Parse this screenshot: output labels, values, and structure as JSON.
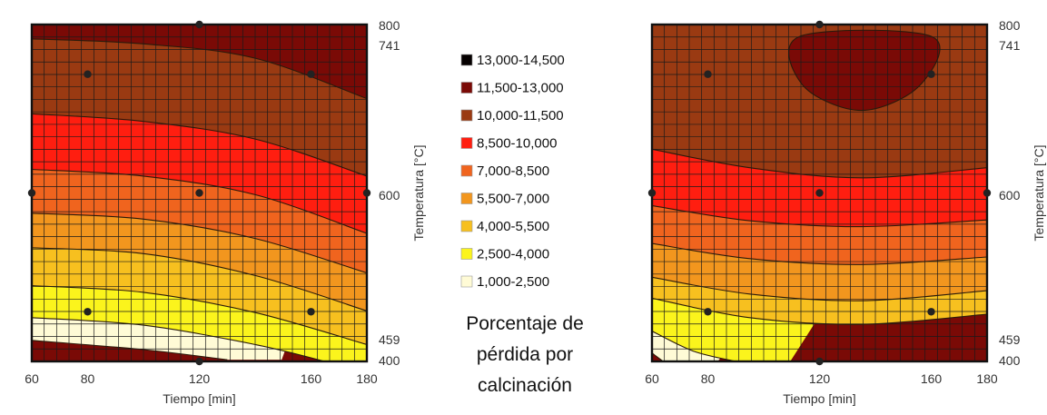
{
  "chart_data": [
    {
      "type": "contour",
      "panel": "left",
      "xlabel": "Tiempo [min]",
      "ylabel": "Temperatura [°C]",
      "xlim": [
        60,
        180
      ],
      "ylim": [
        400,
        800
      ],
      "x_ticks": [
        60,
        80,
        120,
        160,
        180
      ],
      "y_ticks": [
        400,
        459,
        600,
        741,
        800
      ],
      "design_points": [
        {
          "x": 60,
          "y": 600
        },
        {
          "x": 80,
          "y": 459
        },
        {
          "x": 80,
          "y": 741
        },
        {
          "x": 120,
          "y": 400
        },
        {
          "x": 120,
          "y": 600
        },
        {
          "x": 120,
          "y": 800
        },
        {
          "x": 160,
          "y": 459
        },
        {
          "x": 160,
          "y": 741
        },
        {
          "x": 180,
          "y": 600
        }
      ],
      "contour_levels": [
        2500,
        4000,
        5500,
        7000,
        8500,
        10000,
        11500,
        13000
      ],
      "approx_level_curves": [
        {
          "level": 13000,
          "points": [
            [
              60,
              425
            ],
            [
              100,
              414
            ],
            [
              130,
              402
            ]
          ]
        },
        {
          "level": 11500,
          "points": [
            [
              60,
              452
            ],
            [
              100,
              443
            ],
            [
              140,
              420
            ],
            [
              165,
              400
            ]
          ]
        },
        {
          "level": 10000,
          "points": [
            [
              60,
              490
            ],
            [
              100,
              482
            ],
            [
              140,
              458
            ],
            [
              180,
              420
            ]
          ]
        },
        {
          "level": 8500,
          "points": [
            [
              60,
              535
            ],
            [
              100,
              528
            ],
            [
              140,
              502
            ],
            [
              180,
              460
            ]
          ]
        },
        {
          "level": 7000,
          "points": [
            [
              60,
              576
            ],
            [
              100,
              569
            ],
            [
              140,
              546
            ],
            [
              180,
              505
            ]
          ]
        },
        {
          "level": 5500,
          "points": [
            [
              60,
              628
            ],
            [
              100,
              620
            ],
            [
              140,
              598
            ],
            [
              180,
              552
            ]
          ]
        },
        {
          "level": 4000,
          "points": [
            [
              60,
              694
            ],
            [
              100,
              685
            ],
            [
              140,
              664
            ],
            [
              180,
              620
            ]
          ]
        },
        {
          "level": 2500,
          "points": [
            [
              60,
              783
            ],
            [
              100,
              777
            ],
            [
              140,
              760
            ],
            [
              180,
              712
            ]
          ]
        }
      ]
    },
    {
      "type": "contour",
      "panel": "right",
      "xlabel": "Tiempo [min]",
      "ylabel": "Temperatura [°C]",
      "xlim": [
        60,
        180
      ],
      "ylim": [
        400,
        800
      ],
      "x_ticks": [
        60,
        80,
        120,
        160,
        180
      ],
      "y_ticks": [
        400,
        459,
        600,
        741,
        800
      ],
      "design_points": [
        {
          "x": 60,
          "y": 600
        },
        {
          "x": 80,
          "y": 459
        },
        {
          "x": 80,
          "y": 741
        },
        {
          "x": 120,
          "y": 400
        },
        {
          "x": 120,
          "y": 600
        },
        {
          "x": 120,
          "y": 800
        },
        {
          "x": 160,
          "y": 459
        },
        {
          "x": 160,
          "y": 741
        },
        {
          "x": 180,
          "y": 600
        }
      ],
      "contour_levels": [
        2500,
        4000,
        5500,
        7000,
        8500,
        10000,
        11500,
        13000
      ],
      "approx_level_curves": [
        {
          "level": 13000,
          "points": [
            [
              60,
              410
            ],
            [
              64,
              400
            ]
          ]
        },
        {
          "level": 11500,
          "points": [
            [
              60,
              436
            ],
            [
              75,
              412
            ],
            [
              90,
              400
            ]
          ]
        },
        {
          "level": 10000,
          "points": [
            [
              60,
              475
            ],
            [
              95,
              452
            ],
            [
              135,
              444
            ],
            [
              180,
              456
            ]
          ]
        },
        {
          "level": 8500,
          "points": [
            [
              60,
              500
            ],
            [
              95,
              480
            ],
            [
              135,
              472
            ],
            [
              180,
              484
            ]
          ]
        },
        {
          "level": 7000,
          "points": [
            [
              60,
              540
            ],
            [
              95,
              522
            ],
            [
              135,
              515
            ],
            [
              180,
              524
            ]
          ]
        },
        {
          "level": 5500,
          "points": [
            [
              60,
              585
            ],
            [
              95,
              567
            ],
            [
              135,
              560
            ],
            [
              180,
              568
            ]
          ]
        },
        {
          "level": 4000,
          "points": [
            [
              60,
              652
            ],
            [
              95,
              630
            ],
            [
              135,
              618
            ],
            [
              180,
              630
            ]
          ]
        },
        {
          "level": 2500,
          "closed": true,
          "points": [
            [
              113,
              786
            ],
            [
              114,
              728
            ],
            [
              135,
              698
            ],
            [
              156,
              728
            ],
            [
              160,
              786
            ]
          ]
        }
      ]
    }
  ],
  "legend": {
    "items": [
      {
        "label": "13,000-14,500",
        "color": "#050000"
      },
      {
        "label": "11,500-13,000",
        "color": "#7a0a06"
      },
      {
        "label": "10,000-11,500",
        "color": "#9a3a12"
      },
      {
        "label": "8,500-10,000",
        "color": "#ff1e10"
      },
      {
        "label": "7,000-8,500",
        "color": "#f0641e"
      },
      {
        "label": "5,500-7,000",
        "color": "#f2961e"
      },
      {
        "label": "4,000-5,500",
        "color": "#f7c01f"
      },
      {
        "label": "2,500-4,000",
        "color": "#fbf41c"
      },
      {
        "label": "1,000-2,500",
        "color": "#fffbd6"
      }
    ],
    "title_lines": [
      "Porcentaje de",
      "pérdida por",
      "calcinación"
    ]
  },
  "colors": {
    "band_ramp": [
      "#fffbd6",
      "#fbf41c",
      "#f7c01f",
      "#f2961e",
      "#f0641e",
      "#ff1e10",
      "#9a3a12",
      "#7a0a06",
      "#050000"
    ]
  }
}
